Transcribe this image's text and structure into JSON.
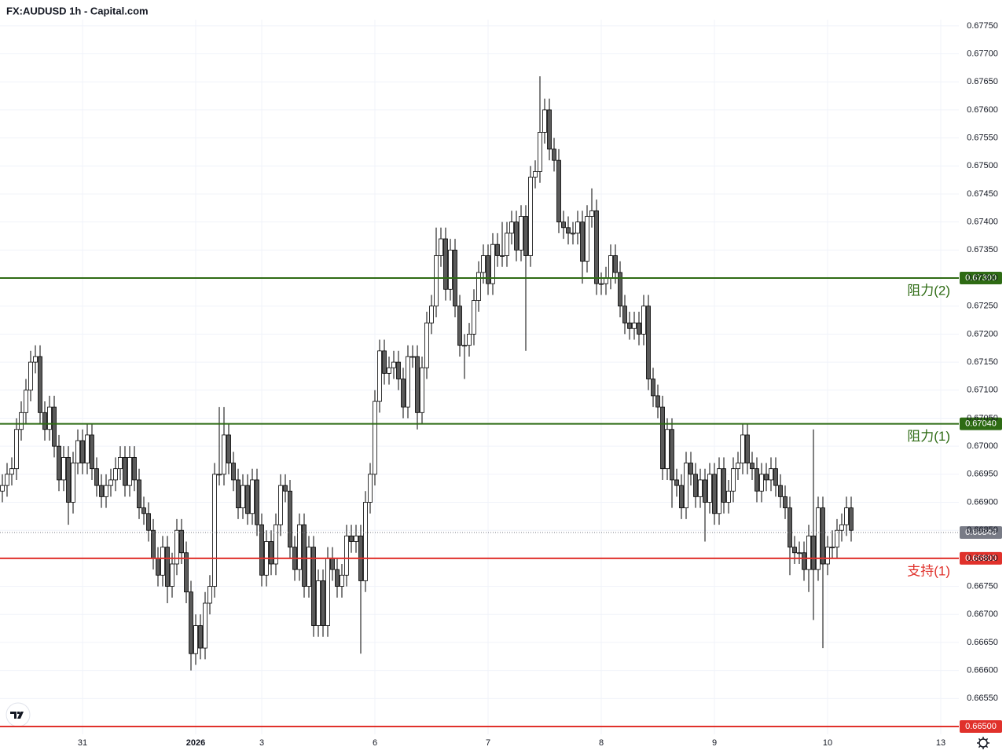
{
  "chart_data": {
    "type": "candlestick",
    "title": "FX:AUDUSD 1h - Capital.com",
    "categories": [
      null,
      null,
      null,
      null,
      null,
      null,
      null,
      null,
      null,
      null,
      null,
      null,
      null,
      null,
      null,
      null,
      null,
      "31",
      null,
      null,
      null,
      null,
      null,
      null,
      null,
      null,
      null,
      null,
      null,
      null,
      null,
      null,
      null,
      null,
      null,
      null,
      null,
      null,
      null,
      null,
      null,
      "2026",
      null,
      null,
      null,
      null,
      null,
      null,
      null,
      null,
      null,
      null,
      null,
      null,
      null,
      "3",
      null,
      null,
      null,
      null,
      null,
      null,
      null,
      null,
      null,
      null,
      null,
      null,
      null,
      null,
      null,
      null,
      null,
      null,
      null,
      null,
      null,
      null,
      null,
      "6",
      null,
      null,
      null,
      null,
      null,
      null,
      null,
      null,
      null,
      null,
      null,
      null,
      null,
      null,
      null,
      null,
      null,
      null,
      null,
      null,
      null,
      null,
      null,
      "7",
      null,
      null,
      null,
      null,
      null,
      null,
      null,
      null,
      null,
      null,
      null,
      null,
      null,
      null,
      null,
      null,
      null,
      null,
      null,
      null,
      null,
      null,
      null,
      "8",
      null,
      null,
      null,
      null,
      null,
      null,
      null,
      null,
      null,
      null,
      null,
      null,
      null,
      null,
      null,
      null,
      null,
      null,
      null,
      null,
      null,
      null,
      null,
      "9",
      null,
      null,
      null,
      null,
      null,
      null,
      null,
      null,
      null,
      null,
      null,
      null,
      null,
      null,
      null,
      null,
      null,
      null,
      null,
      null,
      null,
      null,
      null,
      "10",
      null,
      null,
      null,
      null,
      null,
      null,
      null,
      null,
      null,
      null,
      null,
      null,
      null,
      null,
      null,
      null,
      null,
      null,
      null,
      null,
      null,
      null,
      null,
      "13"
    ],
    "open": [
      0.6692,
      0.6693,
      0.6695,
      0.6696,
      0.6703,
      0.6706,
      0.671,
      0.6715,
      0.6716,
      0.6706,
      0.6703,
      0.6707,
      0.67,
      0.6694,
      0.6698,
      0.669,
      0.6697,
      0.6701,
      0.6697,
      0.6702,
      0.6696,
      0.6693,
      0.6691,
      0.6693,
      0.6694,
      0.6696,
      0.6698,
      0.6693,
      0.6698,
      0.6694,
      0.6689,
      0.6688,
      0.6685,
      0.668,
      0.6677,
      0.6682,
      0.6675,
      0.6679,
      0.6685,
      0.6681,
      0.6674,
      0.6663,
      0.6668,
      0.6664,
      0.6672,
      0.6675,
      0.6695,
      0.6695,
      0.6702,
      0.6697,
      0.6694,
      0.6689,
      0.6693,
      0.6688,
      0.6694,
      0.6686,
      0.6677,
      0.6683,
      0.6679,
      0.6686,
      0.6693,
      0.6692,
      0.6682,
      0.6678,
      0.6686,
      0.6675,
      0.6682,
      0.6668,
      0.6676,
      0.6668,
      0.668,
      0.6678,
      0.6675,
      0.6677,
      0.6684,
      0.6683,
      0.6684,
      0.6676,
      0.669,
      0.6695,
      0.6708,
      0.6717,
      0.6713,
      0.6714,
      0.6715,
      0.6712,
      0.6707,
      0.6716,
      0.6716,
      0.6706,
      0.6714,
      0.6722,
      0.6725,
      0.6734,
      0.6737,
      0.6728,
      0.6735,
      0.6725,
      0.6718,
      0.6718,
      0.672,
      0.6726,
      0.6731,
      0.6734,
      0.6729,
      0.6736,
      0.6734,
      0.6734,
      0.6738,
      0.674,
      0.6735,
      0.6741,
      0.6734,
      0.6748,
      0.6749,
      0.6756,
      0.676,
      0.6753,
      0.6751,
      0.674,
      0.6739,
      0.6738,
      0.6738,
      0.674,
      0.6733,
      0.6741,
      0.6742,
      0.6729,
      0.6729,
      0.673,
      0.6734,
      0.6731,
      0.6725,
      0.6722,
      0.6721,
      0.6722,
      0.672,
      0.6725,
      0.6712,
      0.6709,
      0.6707,
      0.6696,
      0.6703,
      0.6694,
      0.6693,
      0.6689,
      0.6697,
      0.6695,
      0.6691,
      0.6694,
      0.669,
      0.6695,
      0.6688,
      0.6696,
      0.669,
      0.6692,
      0.6696,
      0.6697,
      0.6702,
      0.6697,
      0.6696,
      0.6692,
      0.6695,
      0.6694,
      0.6696,
      0.6693,
      0.6691,
      0.6689,
      0.6682,
      0.6681,
      0.6681,
      0.6678,
      0.6684,
      0.6678,
      0.6689,
      0.6679,
      0.6682,
      0.6682,
      0.6685,
      0.6686,
      0.6689,
      null,
      null,
      null,
      null,
      null,
      null,
      null,
      null,
      null,
      null,
      null,
      null,
      null,
      null,
      null,
      null,
      null,
      null,
      null
    ],
    "high": [
      0.6695,
      0.6697,
      0.6698,
      0.6705,
      0.6708,
      0.6712,
      0.6717,
      0.6718,
      0.6718,
      0.6708,
      0.6709,
      0.6709,
      0.6702,
      0.67,
      0.67,
      0.6699,
      0.6703,
      0.6703,
      0.6704,
      0.6704,
      0.6698,
      0.6695,
      0.6695,
      0.6696,
      0.6698,
      0.67,
      0.67,
      0.67,
      0.67,
      0.6696,
      0.6691,
      0.669,
      0.6687,
      0.6682,
      0.6684,
      0.6684,
      0.6681,
      0.6687,
      0.6687,
      0.6683,
      0.6676,
      0.667,
      0.667,
      0.6674,
      0.6677,
      0.6697,
      0.6707,
      0.6707,
      0.6704,
      0.6699,
      0.6696,
      0.6695,
      0.6695,
      0.6696,
      0.6696,
      0.6688,
      0.6685,
      0.6685,
      0.6688,
      0.6695,
      0.6695,
      0.6694,
      0.6684,
      0.6688,
      0.6688,
      0.6684,
      0.6684,
      0.6678,
      0.6678,
      0.6682,
      0.6682,
      0.668,
      0.6679,
      0.6686,
      0.6686,
      0.6686,
      0.6686,
      0.6692,
      0.6697,
      0.671,
      0.6719,
      0.6719,
      0.6716,
      0.6717,
      0.6717,
      0.6714,
      0.6718,
      0.6718,
      0.6718,
      0.6716,
      0.6724,
      0.6727,
      0.6739,
      0.6739,
      0.6739,
      0.6737,
      0.6737,
      0.6727,
      0.672,
      0.6722,
      0.6728,
      0.6733,
      0.6736,
      0.6736,
      0.6738,
      0.6738,
      0.674,
      0.674,
      0.6742,
      0.6742,
      0.6743,
      0.6743,
      0.675,
      0.6751,
      0.6766,
      0.6762,
      0.6762,
      0.6755,
      0.6753,
      0.6742,
      0.6741,
      0.674,
      0.6742,
      0.6742,
      0.6743,
      0.6746,
      0.6744,
      0.6731,
      0.6732,
      0.6736,
      0.6736,
      0.6733,
      0.6727,
      0.6724,
      0.6724,
      0.6724,
      0.6727,
      0.6727,
      0.6714,
      0.6711,
      0.6709,
      0.6705,
      0.6705,
      0.6696,
      0.6695,
      0.6699,
      0.6699,
      0.6697,
      0.6696,
      0.6696,
      0.6697,
      0.6697,
      0.6698,
      0.6698,
      0.6694,
      0.6698,
      0.6699,
      0.6704,
      0.6704,
      0.6699,
      0.6698,
      0.6697,
      0.6697,
      0.6698,
      0.6698,
      0.6695,
      0.6693,
      0.6691,
      0.6684,
      0.6683,
      0.6683,
      0.6686,
      0.6703,
      0.6691,
      0.6691,
      0.6684,
      0.6685,
      0.6687,
      0.6688,
      0.6691,
      0.6691,
      null,
      null,
      null,
      null,
      null,
      null,
      null,
      null,
      null,
      null,
      null,
      null,
      null,
      null,
      null,
      null,
      null,
      null,
      null
    ],
    "low": [
      0.669,
      0.6691,
      0.6693,
      0.6694,
      0.6701,
      0.6704,
      0.6708,
      0.6713,
      0.6704,
      0.6701,
      0.6701,
      0.6698,
      0.6692,
      0.6692,
      0.6686,
      0.6688,
      0.6695,
      0.6695,
      0.6695,
      0.6694,
      0.6691,
      0.6689,
      0.6689,
      0.6691,
      0.6692,
      0.6694,
      0.6691,
      0.6691,
      0.6692,
      0.6687,
      0.6686,
      0.6683,
      0.6678,
      0.6675,
      0.6675,
      0.6672,
      0.6673,
      0.6677,
      0.6679,
      0.6672,
      0.666,
      0.6661,
      0.6662,
      0.6662,
      0.667,
      0.6673,
      0.6693,
      0.6693,
      0.6695,
      0.6692,
      0.6687,
      0.6687,
      0.6686,
      0.6686,
      0.6684,
      0.6675,
      0.6675,
      0.6677,
      0.6677,
      0.6684,
      0.669,
      0.668,
      0.6676,
      0.6676,
      0.6673,
      0.6673,
      0.6666,
      0.6666,
      0.6666,
      0.6666,
      0.6676,
      0.6673,
      0.6673,
      0.6675,
      0.6681,
      0.6681,
      0.6663,
      0.6674,
      0.6688,
      0.6693,
      0.6706,
      0.6711,
      0.6711,
      0.6712,
      0.671,
      0.6705,
      0.6705,
      0.6714,
      0.6703,
      0.6704,
      0.6712,
      0.672,
      0.6723,
      0.6732,
      0.6726,
      0.6726,
      0.6723,
      0.6716,
      0.6712,
      0.6716,
      0.6718,
      0.6724,
      0.6729,
      0.6727,
      0.6727,
      0.6732,
      0.6732,
      0.6732,
      0.6736,
      0.6733,
      0.6733,
      0.6717,
      0.6732,
      0.6746,
      0.6747,
      0.6754,
      0.6751,
      0.6749,
      0.6738,
      0.6737,
      0.6736,
      0.6736,
      0.6736,
      0.6729,
      0.6731,
      0.6739,
      0.6727,
      0.6727,
      0.6727,
      0.6728,
      0.6729,
      0.6723,
      0.672,
      0.6719,
      0.6719,
      0.6718,
      0.6718,
      0.671,
      0.6707,
      0.6705,
      0.6694,
      0.6694,
      0.6689,
      0.6691,
      0.6687,
      0.6687,
      0.6693,
      0.6689,
      0.6689,
      0.6683,
      0.6688,
      0.6686,
      0.6686,
      0.6688,
      0.6688,
      0.669,
      0.6694,
      0.6695,
      0.6695,
      0.6694,
      0.669,
      0.669,
      0.6692,
      0.6692,
      0.6691,
      0.6689,
      0.6687,
      0.6677,
      0.6679,
      0.6679,
      0.6676,
      0.6674,
      0.6669,
      0.6676,
      0.6664,
      0.6677,
      0.668,
      0.668,
      0.6683,
      0.6684,
      0.6683,
      null,
      null,
      null,
      null,
      null,
      null,
      null,
      null,
      null,
      null,
      null,
      null,
      null,
      null,
      null,
      null,
      null,
      null,
      null
    ],
    "close": [
      0.6693,
      0.6695,
      0.6696,
      0.6703,
      0.6706,
      0.671,
      0.6715,
      0.6716,
      0.6706,
      0.6703,
      0.6707,
      0.67,
      0.6694,
      0.6698,
      0.669,
      0.6697,
      0.6701,
      0.6697,
      0.6702,
      0.6696,
      0.6693,
      0.6691,
      0.6693,
      0.6694,
      0.6696,
      0.6698,
      0.6693,
      0.6698,
      0.6694,
      0.6689,
      0.6688,
      0.6685,
      0.668,
      0.6677,
      0.6682,
      0.6675,
      0.6679,
      0.6685,
      0.6681,
      0.6674,
      0.6663,
      0.6668,
      0.6664,
      0.6672,
      0.6675,
      0.6695,
      0.6695,
      0.6702,
      0.6697,
      0.6694,
      0.6689,
      0.6693,
      0.6688,
      0.6694,
      0.6686,
      0.6677,
      0.6683,
      0.6679,
      0.6686,
      0.6693,
      0.6692,
      0.6682,
      0.6678,
      0.6686,
      0.6675,
      0.6682,
      0.6668,
      0.6676,
      0.6668,
      0.668,
      0.6678,
      0.6675,
      0.6677,
      0.6684,
      0.6683,
      0.6684,
      0.6676,
      0.669,
      0.6695,
      0.6708,
      0.6717,
      0.6713,
      0.6714,
      0.6715,
      0.6712,
      0.6707,
      0.6716,
      0.6716,
      0.6706,
      0.6714,
      0.6722,
      0.6725,
      0.6734,
      0.6737,
      0.6728,
      0.6735,
      0.6725,
      0.6718,
      0.6718,
      0.672,
      0.6726,
      0.6731,
      0.6734,
      0.6729,
      0.6736,
      0.6734,
      0.6734,
      0.6738,
      0.674,
      0.6735,
      0.6741,
      0.6734,
      0.6748,
      0.6749,
      0.6756,
      0.676,
      0.6753,
      0.6751,
      0.674,
      0.6739,
      0.6738,
      0.6738,
      0.674,
      0.6733,
      0.6741,
      0.6742,
      0.6729,
      0.6729,
      0.673,
      0.6734,
      0.6731,
      0.6725,
      0.6722,
      0.6721,
      0.6722,
      0.672,
      0.6725,
      0.6712,
      0.6709,
      0.6707,
      0.6696,
      0.6703,
      0.6694,
      0.6693,
      0.6689,
      0.6697,
      0.6695,
      0.6691,
      0.6694,
      0.669,
      0.6695,
      0.6688,
      0.6696,
      0.669,
      0.6692,
      0.6696,
      0.6697,
      0.6702,
      0.6697,
      0.6696,
      0.6692,
      0.6695,
      0.6694,
      0.6696,
      0.6693,
      0.6691,
      0.6689,
      0.6682,
      0.6681,
      0.6681,
      0.6678,
      0.6684,
      0.6678,
      0.6689,
      0.6679,
      0.6682,
      0.6682,
      0.6685,
      0.6686,
      0.6689,
      0.6685,
      null,
      null,
      null,
      null,
      null,
      null,
      null,
      null,
      null,
      null,
      null,
      null,
      null,
      null,
      null,
      null,
      null,
      null,
      null
    ],
    "up_color": "#ffffff",
    "down_color": "#5a5a5a",
    "wick_color": "#000000",
    "ylim": [
      0.66486,
      0.67761
    ],
    "yticks": [
      {
        "value": 0.6655,
        "label": "0.66550"
      },
      {
        "value": 0.666,
        "label": "0.66600"
      },
      {
        "value": 0.6665,
        "label": "0.66650"
      },
      {
        "value": 0.667,
        "label": "0.66700"
      },
      {
        "value": 0.6675,
        "label": "0.66750"
      },
      {
        "value": 0.668,
        "label": "0.66800"
      },
      {
        "value": 0.6685,
        "label": "0.66850"
      },
      {
        "value": 0.669,
        "label": "0.66900"
      },
      {
        "value": 0.6695,
        "label": "0.66950"
      },
      {
        "value": 0.67,
        "label": "0.67000"
      },
      {
        "value": 0.6705,
        "label": "0.67050"
      },
      {
        "value": 0.671,
        "label": "0.67100"
      },
      {
        "value": 0.6715,
        "label": "0.67150"
      },
      {
        "value": 0.672,
        "label": "0.67200"
      },
      {
        "value": 0.6725,
        "label": "0.67250"
      },
      {
        "value": 0.673,
        "label": "0.67300"
      },
      {
        "value": 0.6735,
        "label": "0.67350"
      },
      {
        "value": 0.674,
        "label": "0.67400"
      },
      {
        "value": 0.6745,
        "label": "0.67450"
      },
      {
        "value": 0.675,
        "label": "0.67500"
      },
      {
        "value": 0.6755,
        "label": "0.67550"
      },
      {
        "value": 0.676,
        "label": "0.67600"
      },
      {
        "value": 0.6765,
        "label": "0.67650"
      },
      {
        "value": 0.677,
        "label": "0.67700"
      },
      {
        "value": 0.6775,
        "label": "0.67750"
      }
    ],
    "grid": true,
    "levels": [
      {
        "value": 0.673,
        "label": "0.67300",
        "name": "阻力(2)",
        "color": "#2e6b14"
      },
      {
        "value": 0.6704,
        "label": "0.67040",
        "name": "阻力(1)",
        "color": "#2e6b14"
      },
      {
        "value": 0.668,
        "label": "0.66800",
        "name": "支持(1)",
        "color": "#e0312b"
      },
      {
        "value": 0.665,
        "label": "0.66500",
        "color": "#e0312b"
      }
    ],
    "last_price": {
      "value": 0.66846,
      "label": "0.66846",
      "color": "#787b86"
    }
  }
}
